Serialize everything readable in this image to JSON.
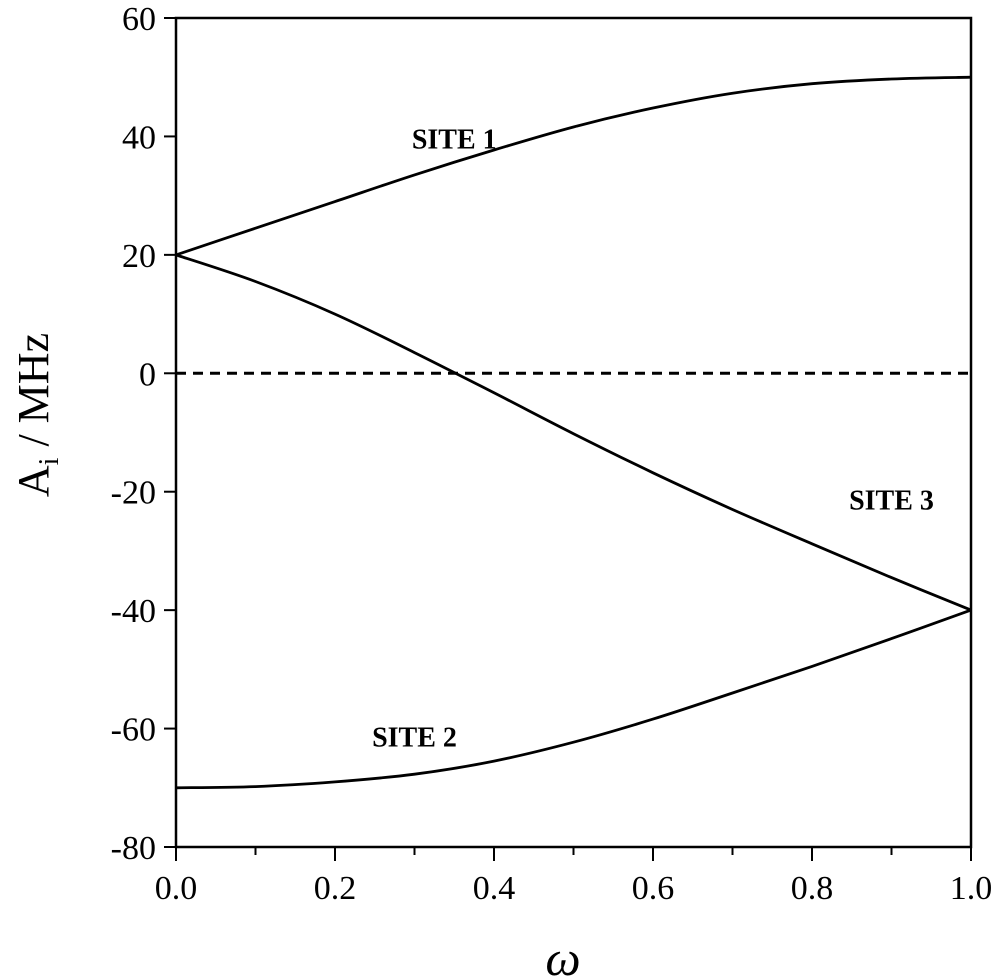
{
  "chart_data": {
    "type": "line",
    "xlabel": "ω",
    "ylabel_main": "A",
    "ylabel_sub": "i",
    "ylabel_unit": " / MHz",
    "xlim": [
      0.0,
      1.0
    ],
    "ylim": [
      -80,
      60
    ],
    "x_ticks": [
      "0.0",
      "0.2",
      "0.4",
      "0.6",
      "0.8",
      "1.0"
    ],
    "y_ticks": [
      "-80",
      "-60",
      "-40",
      "-20",
      "0",
      "20",
      "40",
      "60"
    ],
    "grid": false,
    "legend": "none",
    "zero_line": {
      "y": 0,
      "style": "dashed"
    },
    "x": [
      0.0,
      0.1,
      0.2,
      0.3,
      0.4,
      0.5,
      0.6,
      0.7,
      0.8,
      0.9,
      1.0
    ],
    "series": [
      {
        "name": "SITE 1",
        "label_x": 0.35,
        "label_y": 38,
        "values": [
          20,
          24.5,
          29,
          33.5,
          37.7,
          41.6,
          44.8,
          47.3,
          48.9,
          49.7,
          50
        ]
      },
      {
        "name": "SITE 2",
        "label_x": 0.3,
        "label_y": -63,
        "values": [
          -70,
          -69.8,
          -69,
          -67.7,
          -65.5,
          -62.3,
          -58.4,
          -54,
          -49.5,
          -44.8,
          -40
        ]
      },
      {
        "name": "SITE 3",
        "label_x": 0.9,
        "label_y": -23,
        "values": [
          20,
          15.5,
          10,
          3.5,
          -3.3,
          -10.2,
          -16.8,
          -23,
          -28.8,
          -34.5,
          -40
        ]
      }
    ]
  }
}
